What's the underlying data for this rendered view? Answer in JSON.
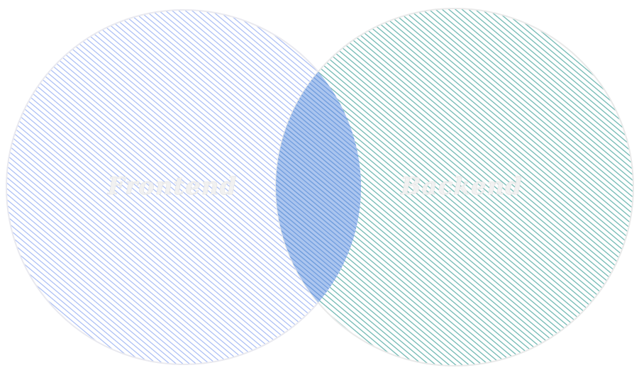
{
  "diagram": {
    "type": "venn",
    "sets": [
      {
        "id": "frontend",
        "label": "Frontend",
        "color": "#8ea8f2",
        "hatch_color": "#7f9cf0"
      },
      {
        "id": "backend",
        "label": "Backend",
        "color": "#5fb3ad",
        "hatch_color": "#4aa9a2"
      }
    ],
    "overlap_color": "#6f9fe0",
    "outline_color": "#e6e6e6",
    "label_color": "#f1f1f1"
  }
}
